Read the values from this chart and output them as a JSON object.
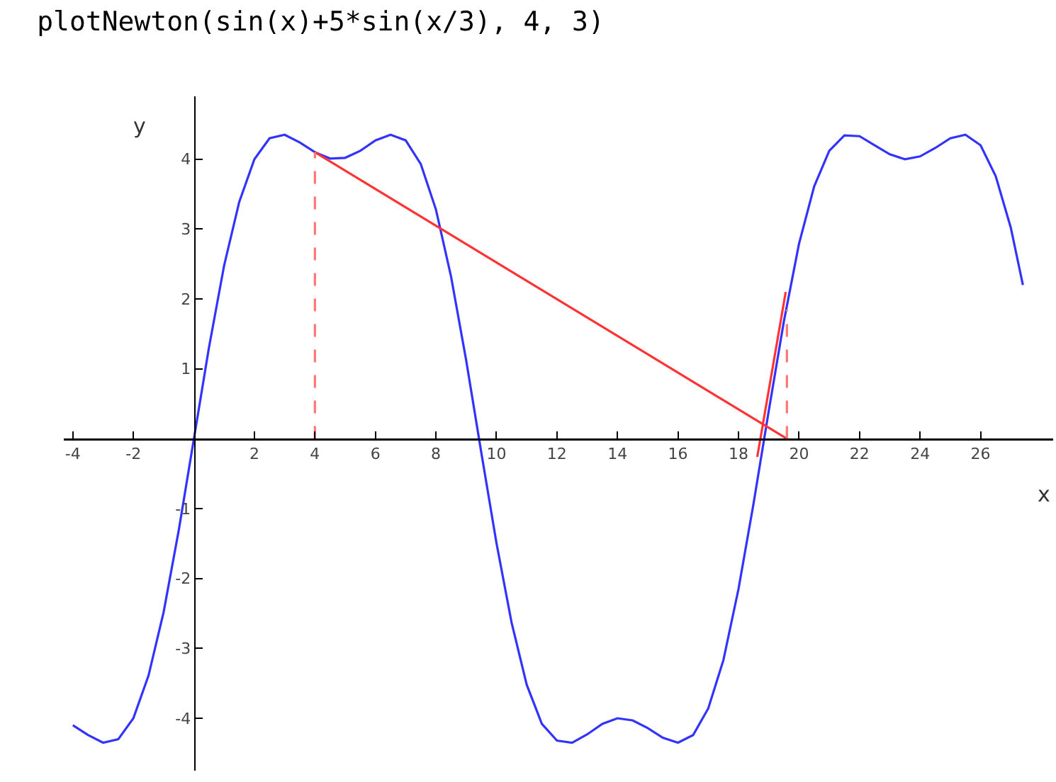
{
  "chart_data": {
    "type": "line",
    "title": "plotNewton(sin(x)+5*sin(x/3), 4, 3)",
    "xlabel": "x",
    "ylabel": "y",
    "xlim": [
      -4.3,
      28.4
    ],
    "ylim": [
      -4.75,
      4.9
    ],
    "xticks": [
      -4,
      -2,
      2,
      4,
      6,
      8,
      10,
      12,
      14,
      16,
      18,
      20,
      22,
      24,
      26
    ],
    "yticks": [
      -4,
      -3,
      -2,
      -1,
      1,
      2,
      3,
      4
    ],
    "grid": false,
    "marker": "none",
    "series": [
      {
        "color": "#3333ff",
        "line_style": "solid",
        "x": [
          -4,
          -3.5,
          -3,
          -2.5,
          -2,
          -1.5,
          -1,
          -0.5,
          0,
          0.5,
          1,
          1.5,
          2,
          2.5,
          3,
          3.5,
          4,
          4.5,
          5,
          5.5,
          6,
          6.5,
          7,
          7.5,
          8,
          8.5,
          9,
          9.5,
          10,
          10.5,
          11,
          11.5,
          12,
          12.5,
          13,
          13.5,
          14,
          14.5,
          15,
          15.5,
          16,
          16.5,
          17,
          17.5,
          18,
          18.5,
          19,
          19.5,
          20,
          20.5,
          21,
          21.5,
          22,
          22.5,
          23,
          23.5,
          24,
          24.5,
          25,
          25.5,
          26,
          26.5,
          27,
          27.4
        ],
        "values": [
          -4.1,
          -4.24,
          -4.35,
          -4.3,
          -4,
          -3.39,
          -2.48,
          -1.31,
          0,
          1.31,
          2.48,
          3.39,
          4,
          4.3,
          4.35,
          4.24,
          4.1,
          4.01,
          4.02,
          4.12,
          4.27,
          4.35,
          4.27,
          3.93,
          3.28,
          2.32,
          1.12,
          -0.2,
          -1.49,
          -2.63,
          -3.52,
          -4.08,
          -4.32,
          -4.35,
          -4.23,
          -4.08,
          -4,
          -4.03,
          -4.14,
          -4.28,
          -4.35,
          -4.24,
          -3.86,
          -3.17,
          -2.15,
          -0.92,
          0.4,
          1.68,
          2.79,
          3.61,
          4.12,
          4.34,
          4.33,
          4.2,
          4.07,
          4,
          4.04,
          4.16,
          4.3,
          4.35,
          4.2,
          3.76,
          3.02,
          2.2
        ]
      },
      {
        "color": "#ff3333",
        "line_style": "solid",
        "x": [
          4,
          19.6
        ],
        "values": [
          4.1,
          0
        ]
      },
      {
        "color": "#ff3333",
        "line_style": "solid",
        "x": [
          18.62,
          19.56
        ],
        "values": [
          -0.26,
          2.1
        ]
      },
      {
        "color": "#ff7777",
        "line_style": "dashed",
        "x": [
          4,
          4
        ],
        "values": [
          0,
          4.1
        ]
      },
      {
        "color": "#ff7777",
        "line_style": "dashed",
        "x": [
          19.6,
          19.6
        ],
        "values": [
          0,
          1.85
        ]
      }
    ]
  }
}
